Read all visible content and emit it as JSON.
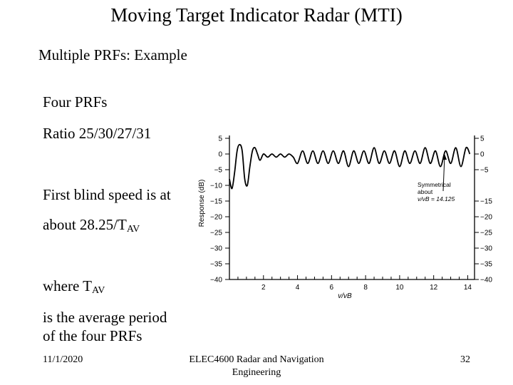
{
  "slide": {
    "title": "Moving Target Indicator Radar (MTI)",
    "subtitle": "Multiple PRFs:   Example",
    "bullets": {
      "line1": "Four PRFs",
      "line2": "Ratio 25/30/27/31",
      "line3": "First blind speed is at",
      "line4_main": "about 28.25/T",
      "line4_sub": "AV",
      "line5_main": "where T",
      "line5_sub": "AV",
      "line6": "is the average period",
      "line7": "of the four PRFs"
    }
  },
  "footer": {
    "date": "11/1/2020",
    "course_line1": "ELEC4600 Radar and Navigation",
    "course_line2": "Engineering",
    "page": "32"
  },
  "figure": {
    "ylabel": "Response (dB)",
    "xlabel": "v/vB",
    "annotation_line1": "Symmetrical",
    "annotation_line2": "about",
    "annotation_line3": "v/vB = 14.125",
    "left_ticks": [
      "5",
      "0",
      "−5",
      "−10",
      "−15",
      "−20",
      "−25",
      "−30",
      "−35",
      "−40"
    ],
    "right_ticks": [
      "5",
      "0",
      "−5",
      "−15",
      "−20",
      "−25",
      "−30",
      "−35",
      "−40"
    ],
    "x_ticks": [
      "2",
      "4",
      "6",
      "8",
      "10",
      "12",
      "14"
    ]
  },
  "chart_data": {
    "type": "line",
    "x_range": [
      0,
      14.4
    ],
    "y_range": [
      -40,
      5
    ],
    "series": [
      {
        "x": [
          0.0,
          0.15,
          0.3,
          0.45,
          0.6,
          0.75,
          0.9,
          1.05,
          1.2,
          1.35,
          1.5,
          1.65,
          1.8,
          2.0,
          2.25,
          2.5,
          2.75,
          3.0,
          3.25,
          3.5,
          3.75,
          4.0,
          4.3,
          4.6,
          4.9,
          5.2,
          5.5,
          5.8,
          6.1,
          6.4,
          6.7,
          7.0,
          7.3,
          7.6,
          7.9,
          8.2,
          8.5,
          8.8,
          9.1,
          9.4,
          9.7,
          10.0,
          10.3,
          10.6,
          10.9,
          11.2,
          11.5,
          11.8,
          12.1,
          12.4,
          12.7,
          13.0,
          13.3,
          13.6,
          13.9,
          14.125
        ],
        "y": [
          -8,
          -11,
          -6,
          1,
          3,
          1,
          -8,
          -10,
          -4,
          1,
          2,
          0,
          -2,
          0,
          -1,
          0,
          -1,
          0,
          -1,
          0,
          -1,
          -3,
          1,
          -3,
          1,
          -3,
          1,
          -3,
          1,
          -3,
          1,
          -4,
          1,
          -3,
          1,
          -3,
          2,
          -3,
          1,
          -3,
          1,
          -4,
          1,
          -3,
          1,
          -3,
          2,
          -3,
          1,
          -4,
          1,
          -3,
          2,
          -4,
          2,
          0
        ]
      }
    ]
  }
}
